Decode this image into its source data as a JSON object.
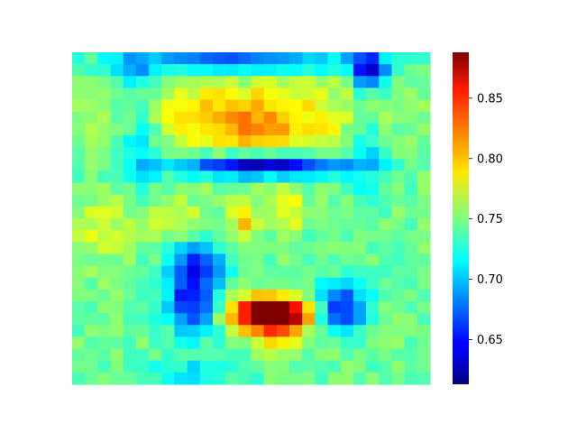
{
  "chart_data": {
    "type": "heatmap",
    "title": "",
    "xlabel": "",
    "ylabel": "",
    "colormap": "jet",
    "grid": false,
    "axes_visible": false,
    "rows": 28,
    "cols": 28,
    "value_range": [
      0.613,
      0.888
    ],
    "colorbar": {
      "ticks": [
        0.65,
        0.7,
        0.75,
        0.8,
        0.85
      ],
      "tick_labels": [
        "0.65",
        "0.70",
        "0.75",
        "0.80",
        "0.85"
      ],
      "min": 0.613,
      "max": 0.888
    },
    "background_value": 0.745,
    "features": [
      {
        "name": "upper-warm-band",
        "r": 5.0,
        "c": 13.5,
        "sr": 2.8,
        "sc": 6.5,
        "v": 0.045
      },
      {
        "name": "upper-warm-core",
        "r": 5.8,
        "c": 13.0,
        "sr": 1.6,
        "sc": 4.0,
        "v": 0.025
      },
      {
        "name": "top-dark-edge",
        "r": 0.2,
        "c": 13.0,
        "sr": 0.8,
        "sc": 6.0,
        "v": -0.08
      },
      {
        "name": "top-right-dark",
        "r": 1.0,
        "c": 22.7,
        "sr": 1.2,
        "sc": 1.0,
        "v": -0.1
      },
      {
        "name": "top-left-blue",
        "r": 1.0,
        "c": 4.5,
        "sr": 1.2,
        "sc": 1.5,
        "v": -0.04
      },
      {
        "name": "middle-dark-band",
        "r": 9.0,
        "c": 14.5,
        "sr": 0.7,
        "sc": 5.0,
        "v": -0.11
      },
      {
        "name": "middle-dark-core",
        "r": 9.3,
        "c": 13.5,
        "sr": 0.5,
        "sc": 2.5,
        "v": -0.03
      },
      {
        "name": "left-blue-arc",
        "r": 7.5,
        "c": 5.0,
        "sr": 2.5,
        "sc": 1.3,
        "v": -0.045
      },
      {
        "name": "right-blue-arc",
        "r": 8.0,
        "c": 22.5,
        "sr": 2.5,
        "sc": 1.0,
        "v": -0.04
      },
      {
        "name": "left-mid-yellow",
        "r": 14.5,
        "c": 2.0,
        "sr": 1.8,
        "sc": 1.4,
        "v": 0.035
      },
      {
        "name": "center-left-yellow",
        "r": 13.5,
        "c": 7.5,
        "sr": 1.3,
        "sc": 1.5,
        "v": 0.03
      },
      {
        "name": "center-orange",
        "r": 13.5,
        "c": 13.0,
        "sr": 1.3,
        "sc": 0.8,
        "v": 0.055
      },
      {
        "name": "center-right-orange",
        "r": 13.0,
        "c": 16.5,
        "sr": 1.3,
        "sc": 0.7,
        "v": 0.045
      },
      {
        "name": "lower-left-dark",
        "r": 20.0,
        "c": 9.0,
        "sr": 2.3,
        "sc": 1.5,
        "v": -0.1
      },
      {
        "name": "lower-left-dark-top",
        "r": 17.0,
        "c": 9.5,
        "sr": 1.0,
        "sc": 1.5,
        "v": -0.05
      },
      {
        "name": "lower-right-dark",
        "r": 21.0,
        "c": 20.5,
        "sr": 1.5,
        "sc": 1.4,
        "v": -0.1
      },
      {
        "name": "bottom-hot",
        "r": 21.5,
        "c": 15.0,
        "sr": 1.0,
        "sc": 2.3,
        "v": 0.16
      },
      {
        "name": "bottom-warm",
        "r": 23.0,
        "c": 15.5,
        "sr": 1.2,
        "sc": 1.6,
        "v": 0.05
      },
      {
        "name": "bottom-blue-edge",
        "r": 26.5,
        "c": 9.0,
        "sr": 0.8,
        "sc": 3.0,
        "v": -0.03
      }
    ]
  }
}
